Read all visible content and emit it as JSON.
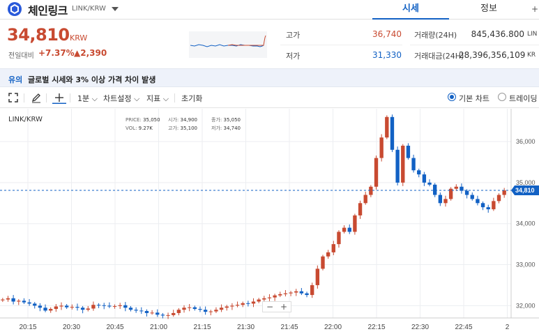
{
  "coin": {
    "name": "체인링크",
    "pair": "LINK/KRW"
  },
  "tabs": {
    "quote": "시세",
    "info": "정보",
    "more": "+"
  },
  "price": {
    "current": "34,810",
    "unit": "KRW",
    "change_label": "전일대비",
    "change_rate": "+7.37%",
    "change_abs": "▲2,390"
  },
  "stats": {
    "high_label": "고가",
    "high": "36,740",
    "low_label": "저가",
    "low": "31,330",
    "volume_label": "거래량(24H)",
    "volume": "845,436.800",
    "volume_unit": "LIN",
    "amount_label": "거래대금(24H)",
    "amount": "28,396,356,109",
    "amount_unit": "KR"
  },
  "notice": {
    "tag": "유의",
    "text": "글로벌 시세와 3% 이상 가격 차이 발생"
  },
  "toolbar": {
    "interval": "1분",
    "chart_settings": "차트설정",
    "indicators": "지표",
    "reset": "초기화",
    "basic_chart": "기본 차트",
    "trading_chart": "트레이딩"
  },
  "chart_legend": {
    "symbol": "LINK/KRW",
    "price_label": "PRICE:",
    "price": "35,050",
    "vol_label": "VOL:",
    "vol": "9.27K",
    "open_label": "시가:",
    "open": "34,900",
    "high_label": "고가:",
    "high": "35,100",
    "close_label": "종가:",
    "close": "35,050",
    "low_label": "저가:",
    "low": "34,740"
  },
  "chart_data": {
    "type": "candlestick",
    "x_ticks": [
      "20:15",
      "20:30",
      "20:45",
      "21:00",
      "21:15",
      "21:30",
      "21:45",
      "22:00",
      "22:15",
      "22:30",
      "22:45",
      "2"
    ],
    "y_ticks": [
      "32,000",
      "33,000",
      "34,000",
      "35,000",
      "36,000"
    ],
    "y_values": [
      32000,
      33000,
      34000,
      35000,
      36000
    ],
    "ylim": [
      31700,
      36800
    ],
    "current_price_label": "34,810",
    "current_price": 34810,
    "colors": {
      "up": "#c84a31",
      "down": "#1261c4"
    },
    "close_path": [
      32150,
      32180,
      32100,
      32120,
      32080,
      32050,
      32000,
      31950,
      31880,
      31920,
      31980,
      32000,
      31960,
      31970,
      31950,
      31900,
      31930,
      32020,
      32010,
      32000,
      31980,
      31990,
      32010,
      31950,
      31900,
      31880,
      31870,
      31820,
      31830,
      31780,
      31760,
      31770,
      31820,
      31900,
      31950,
      31960,
      31920,
      31900,
      31850,
      31860,
      31900,
      31950,
      31980,
      32000,
      32020,
      32060,
      32050,
      32100,
      32150,
      32180,
      32200,
      32250,
      32280,
      32300,
      32320,
      32350,
      32300,
      32260,
      32500,
      32900,
      33200,
      33300,
      33500,
      33800,
      33900,
      33800,
      34200,
      34500,
      34700,
      34900,
      35600,
      36100,
      36600,
      35800,
      35000,
      35900,
      35600,
      35300,
      35200,
      35000,
      34950,
      34700,
      34500,
      34600,
      34850,
      34900,
      34800,
      34700,
      34600,
      34500,
      34400,
      34350,
      34550,
      34700,
      34810
    ]
  }
}
